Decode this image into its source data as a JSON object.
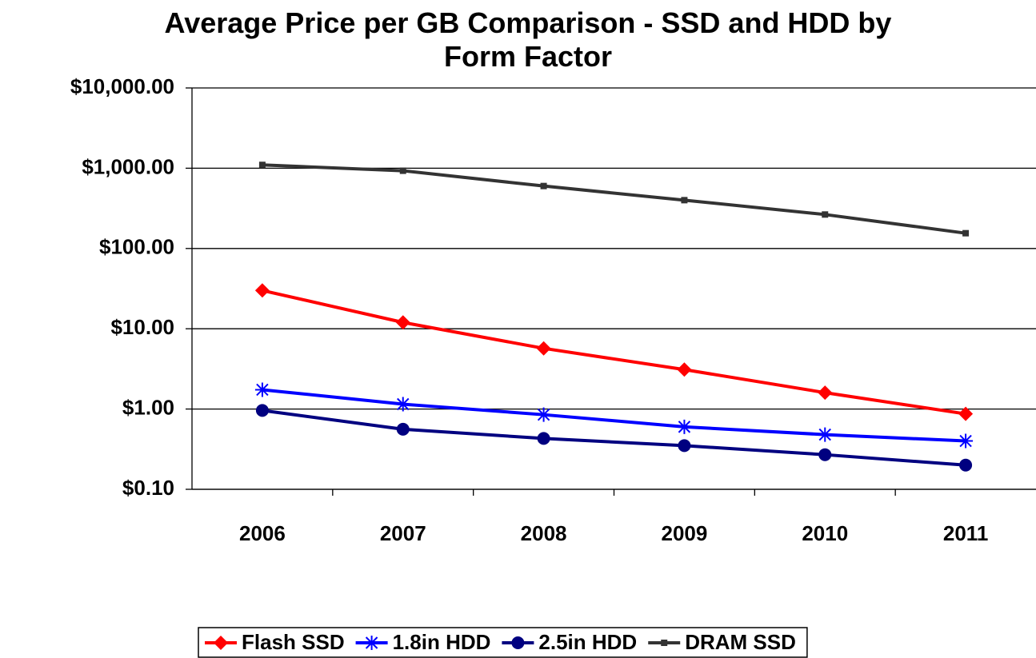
{
  "chart_data": {
    "type": "line",
    "title": "Average Price per GB Comparison - SSD and HDD by Form Factor",
    "categories": [
      "2006",
      "2007",
      "2008",
      "2009",
      "2010",
      "2011"
    ],
    "series": [
      {
        "name": "Flash SSD",
        "color": "#ff0000",
        "marker": "diamond",
        "values": [
          30,
          12,
          5.7,
          3.1,
          1.6,
          0.87
        ]
      },
      {
        "name": "1.8in HDD",
        "color": "#0000ff",
        "marker": "star",
        "values": [
          1.74,
          1.15,
          0.85,
          0.6,
          0.48,
          0.4
        ]
      },
      {
        "name": "2.5in HDD",
        "color": "#000080",
        "marker": "circle",
        "values": [
          0.96,
          0.56,
          0.43,
          0.35,
          0.27,
          0.2
        ]
      },
      {
        "name": "DRAM SSD",
        "color": "#333333",
        "marker": "square",
        "values": [
          1100,
          930,
          600,
          400,
          265,
          155
        ]
      }
    ],
    "ylim": [
      0.1,
      10000
    ],
    "log_y": true,
    "grid": true,
    "legend": "bottom",
    "yticks": [
      {
        "value": 0.1,
        "label": "$0.10"
      },
      {
        "value": 1,
        "label": "$1.00"
      },
      {
        "value": 10,
        "label": "$10.00"
      },
      {
        "value": 100,
        "label": "$100.00"
      },
      {
        "value": 1000,
        "label": "$1,000.00"
      },
      {
        "value": 10000,
        "label": "$10,000.00"
      }
    ]
  }
}
